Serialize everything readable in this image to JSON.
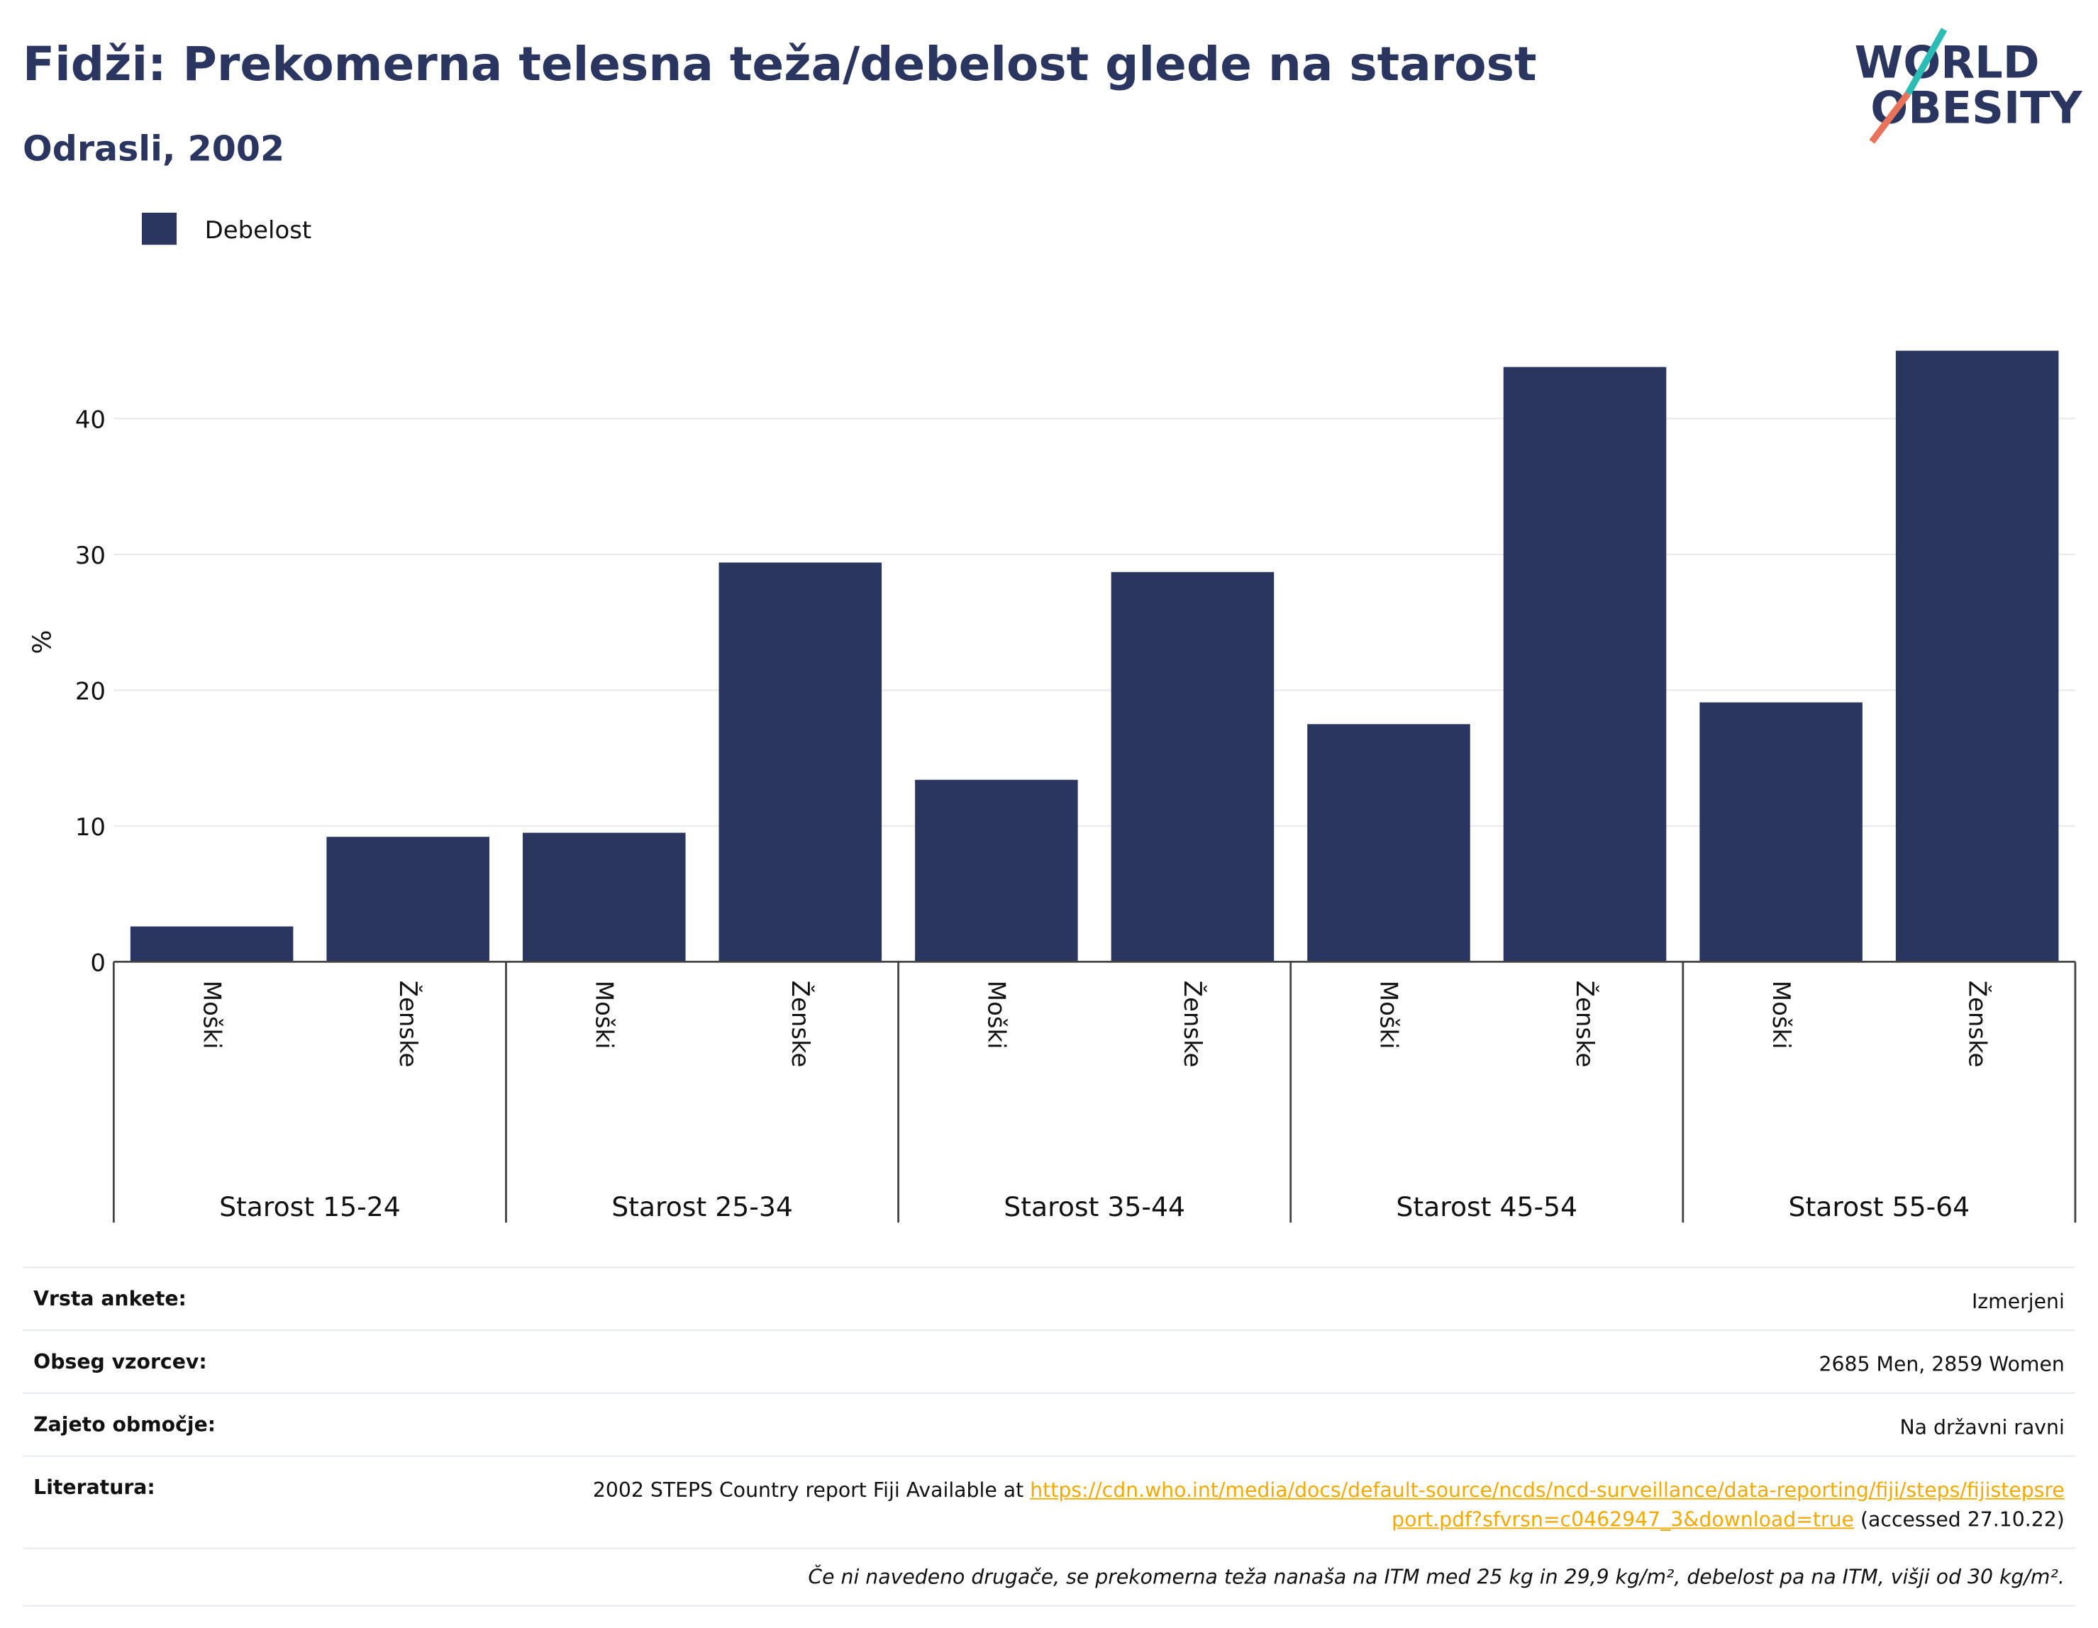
{
  "chart_data": {
    "type": "bar",
    "title": "Fidži: Prekomerna telesna teža/debelost glede na starost",
    "subtitle": "Odrasli, 2002",
    "y_label": "%",
    "categories": [
      "Moški",
      "Ženske",
      "Moški",
      "Ženske",
      "Moški",
      "Ženske",
      "Moški",
      "Ženske",
      "Moški",
      "Ženske"
    ],
    "category_groups": [
      "Starost 15-24",
      "Starost 25-34",
      "Starost 35-44",
      "Starost 45-54",
      "Starost 55-64"
    ],
    "series": [
      {
        "name": "Debelost",
        "color": "#2a3560",
        "values": [
          2.6,
          9.2,
          9.5,
          29.4,
          13.4,
          28.7,
          17.5,
          43.8,
          19.1,
          45.0
        ]
      }
    ],
    "ylim": [
      0,
      46.3
    ],
    "yticks": [
      0,
      10,
      20,
      30,
      40
    ],
    "grid": true,
    "legend": "top-left"
  },
  "logo": [
    "WORLD",
    "OBESITY"
  ],
  "info": {
    "rows": [
      {
        "label": "Vrsta ankete:",
        "value": "Izmerjeni"
      },
      {
        "label": "Obseg vzorcev:",
        "value": "2685 Men, 2859 Women"
      },
      {
        "label": "Zajeto območje:",
        "value": "Na državni ravni"
      }
    ],
    "reference": {
      "label": "Literatura:",
      "text": "2002 STEPS Country report Fiji Available at",
      "link": "https://cdn.who.int/media/docs/default-source/ncds/ncd-surveillance/data-reporting/fiji/steps/fijistepsreport.pdf?sfvrsn=c0462947_3&download=true",
      "after": "(accessed 27.10.22)"
    },
    "footnote": "Če ni navedeno drugače, se prekomerna teža nanaša na ITM med 25 kg in 29,9 kg/m², debelost pa na ITM, višji od 30 kg/m²."
  }
}
